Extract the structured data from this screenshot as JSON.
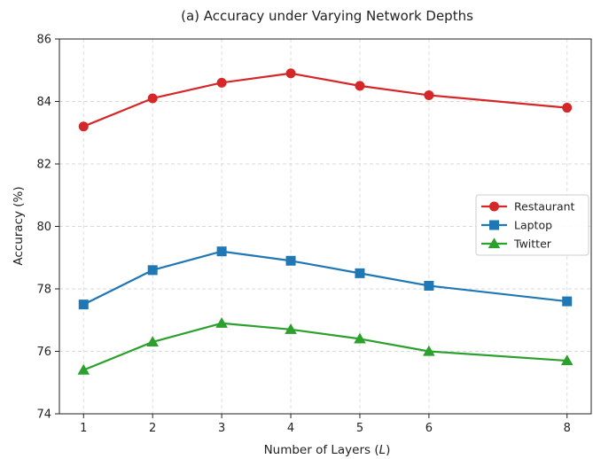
{
  "chart_data": {
    "type": "line",
    "title": "(a) Accuracy under Varying Network Depths",
    "xlabel_prefix": "Number of Layers (",
    "xlabel_var": "L",
    "xlabel_suffix": ")",
    "ylabel": "Accuracy (%)",
    "x": [
      1,
      2,
      3,
      4,
      5,
      6,
      8
    ],
    "xticks": [
      1,
      2,
      3,
      4,
      5,
      6,
      8
    ],
    "yticks": [
      74,
      76,
      78,
      80,
      82,
      84,
      86
    ],
    "xlim": [
      0.65,
      8.35
    ],
    "ylim": [
      74,
      86
    ],
    "grid": true,
    "legend_position": "right",
    "series": [
      {
        "name": "Restaurant",
        "color": "#d62728",
        "marker": "circle",
        "values": [
          83.2,
          84.1,
          84.6,
          84.9,
          84.5,
          84.2,
          83.8
        ]
      },
      {
        "name": "Laptop",
        "color": "#1f77b4",
        "marker": "square",
        "values": [
          77.5,
          78.6,
          79.2,
          78.9,
          78.5,
          78.1,
          77.6
        ]
      },
      {
        "name": "Twitter",
        "color": "#2ca02c",
        "marker": "triangle",
        "values": [
          75.4,
          76.3,
          76.9,
          76.7,
          76.4,
          76.0,
          75.7
        ]
      }
    ]
  }
}
